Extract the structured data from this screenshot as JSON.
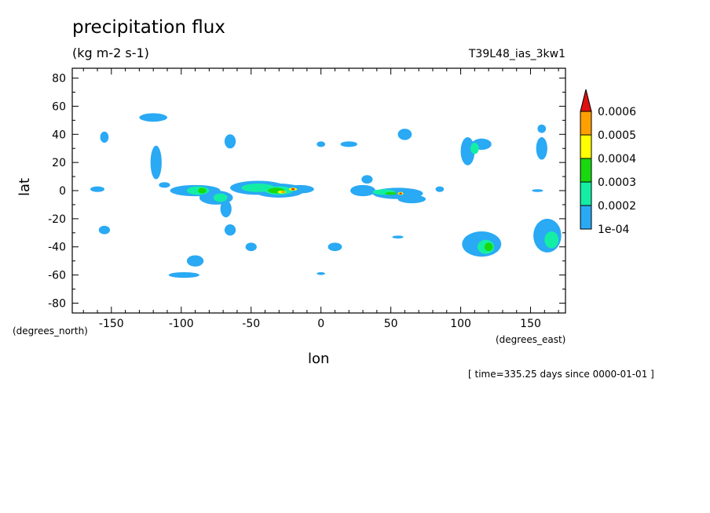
{
  "chart_data": {
    "type": "heatmap",
    "title": "precipitation flux",
    "units": "(kg m-2 s-1)",
    "run_id": "T39L48_ias_3kw1",
    "xlabel": "lon",
    "ylabel": "lat",
    "xunits": "(degrees_east)",
    "yunits": "(degrees_north)",
    "timestamp": "[ time=335.25 days since 0000-01-01 ]",
    "xlim": [
      -178,
      175
    ],
    "ylim": [
      -87,
      87
    ],
    "x_ticks": [
      -150,
      -100,
      -50,
      0,
      50,
      100,
      150
    ],
    "y_ticks": [
      -80,
      -60,
      -40,
      -20,
      0,
      20,
      40,
      60,
      80
    ],
    "colorbar": {
      "levels": [
        "1e-04",
        "0.0002",
        "0.0003",
        "0.0004",
        "0.0005",
        "0.0006"
      ],
      "colors": [
        "#2aa9f4",
        "#14eea4",
        "#18d90e",
        "#ffff00",
        "#ffa000",
        "#e01010"
      ]
    },
    "features": [
      {
        "lon": -160,
        "lat": 1,
        "rx": 5,
        "ry": 2,
        "level": 0
      },
      {
        "lon": -155,
        "lat": 38,
        "rx": 3,
        "ry": 4,
        "level": 0
      },
      {
        "lon": -155,
        "lat": -28,
        "rx": 4,
        "ry": 3,
        "level": 0
      },
      {
        "lon": -120,
        "lat": 52,
        "rx": 10,
        "ry": 3,
        "level": 0
      },
      {
        "lon": -118,
        "lat": 20,
        "rx": 4,
        "ry": 12,
        "level": 0
      },
      {
        "lon": -112,
        "lat": 4,
        "rx": 4,
        "ry": 2,
        "level": 0
      },
      {
        "lon": -90,
        "lat": 0,
        "rx": 18,
        "ry": 4,
        "level": 0
      },
      {
        "lon": -75,
        "lat": -5,
        "rx": 12,
        "ry": 5,
        "level": 0
      },
      {
        "lon": -68,
        "lat": -13,
        "rx": 4,
        "ry": 6,
        "level": 0
      },
      {
        "lon": -65,
        "lat": 35,
        "rx": 4,
        "ry": 5,
        "level": 0
      },
      {
        "lon": -65,
        "lat": -28,
        "rx": 4,
        "ry": 4,
        "level": 0
      },
      {
        "lon": -45,
        "lat": 2,
        "rx": 20,
        "ry": 5,
        "level": 0
      },
      {
        "lon": -30,
        "lat": 0,
        "rx": 18,
        "ry": 5,
        "level": 0
      },
      {
        "lon": -15,
        "lat": 1,
        "rx": 10,
        "ry": 3,
        "level": 0
      },
      {
        "lon": -50,
        "lat": -40,
        "rx": 4,
        "ry": 3,
        "level": 0
      },
      {
        "lon": -90,
        "lat": -50,
        "rx": 6,
        "ry": 4,
        "level": 0
      },
      {
        "lon": -98,
        "lat": -60,
        "rx": 11,
        "ry": 2,
        "level": 0
      },
      {
        "lon": 0,
        "lat": 33,
        "rx": 3,
        "ry": 2,
        "level": 0
      },
      {
        "lon": 0,
        "lat": -59,
        "rx": 3,
        "ry": 1,
        "level": 0
      },
      {
        "lon": 20,
        "lat": 33,
        "rx": 6,
        "ry": 2,
        "level": 0
      },
      {
        "lon": 30,
        "lat": 0,
        "rx": 9,
        "ry": 4,
        "level": 0
      },
      {
        "lon": 33,
        "lat": 8,
        "rx": 4,
        "ry": 3,
        "level": 0
      },
      {
        "lon": 55,
        "lat": -2,
        "rx": 18,
        "ry": 4,
        "level": 0
      },
      {
        "lon": 60,
        "lat": 40,
        "rx": 5,
        "ry": 4,
        "level": 0
      },
      {
        "lon": 65,
        "lat": -6,
        "rx": 10,
        "ry": 3,
        "level": 0
      },
      {
        "lon": 85,
        "lat": 1,
        "rx": 3,
        "ry": 2,
        "level": 0
      },
      {
        "lon": 105,
        "lat": 28,
        "rx": 5,
        "ry": 10,
        "level": 0
      },
      {
        "lon": 115,
        "lat": 33,
        "rx": 7,
        "ry": 4,
        "level": 0
      },
      {
        "lon": 115,
        "lat": -38,
        "rx": 14,
        "ry": 9,
        "level": 0
      },
      {
        "lon": 158,
        "lat": 30,
        "rx": 4,
        "ry": 8,
        "level": 0
      },
      {
        "lon": 155,
        "lat": 0,
        "rx": 4,
        "ry": 1,
        "level": 0
      },
      {
        "lon": 162,
        "lat": -32,
        "rx": 10,
        "ry": 12,
        "level": 0
      },
      {
        "lon": 158,
        "lat": 44,
        "rx": 3,
        "ry": 3,
        "level": 0
      },
      {
        "lon": 10,
        "lat": -40,
        "rx": 5,
        "ry": 3,
        "level": 0
      },
      {
        "lon": 55,
        "lat": -33,
        "rx": 4,
        "ry": 1,
        "level": 0
      },
      {
        "lon": -88,
        "lat": 0,
        "rx": 8,
        "ry": 3,
        "level": 1
      },
      {
        "lon": -45,
        "lat": 2,
        "rx": 12,
        "ry": 3,
        "level": 1
      },
      {
        "lon": -30,
        "lat": 0,
        "rx": 10,
        "ry": 3,
        "level": 1
      },
      {
        "lon": -72,
        "lat": -5,
        "rx": 5,
        "ry": 3,
        "level": 1
      },
      {
        "lon": 45,
        "lat": -1,
        "rx": 8,
        "ry": 2,
        "level": 1
      },
      {
        "lon": 118,
        "lat": -40,
        "rx": 6,
        "ry": 5,
        "level": 1
      },
      {
        "lon": 165,
        "lat": -35,
        "rx": 5,
        "ry": 6,
        "level": 1
      },
      {
        "lon": 110,
        "lat": 30,
        "rx": 3,
        "ry": 4,
        "level": 1
      },
      {
        "lon": -32,
        "lat": 0,
        "rx": 6,
        "ry": 2,
        "level": 2
      },
      {
        "lon": -85,
        "lat": 0,
        "rx": 3,
        "ry": 2,
        "level": 2
      },
      {
        "lon": 50,
        "lat": -2,
        "rx": 4,
        "ry": 1,
        "level": 2
      },
      {
        "lon": 120,
        "lat": -40,
        "rx": 3,
        "ry": 3,
        "level": 2
      },
      {
        "lon": -28,
        "lat": -1,
        "rx": 3,
        "ry": 1,
        "level": 3
      },
      {
        "lon": -20,
        "lat": 1,
        "rx": 3,
        "ry": 1,
        "level": 3
      },
      {
        "lon": 57,
        "lat": -2,
        "rx": 2,
        "ry": 1,
        "level": 3
      },
      {
        "lon": -27,
        "lat": -1,
        "rx": 1.5,
        "ry": 0.8,
        "level": 4
      },
      {
        "lon": -20,
        "lat": 1,
        "rx": 1.2,
        "ry": 0.6,
        "level": 5
      },
      {
        "lon": 57,
        "lat": -2,
        "rx": 1,
        "ry": 0.5,
        "level": 5
      }
    ]
  }
}
